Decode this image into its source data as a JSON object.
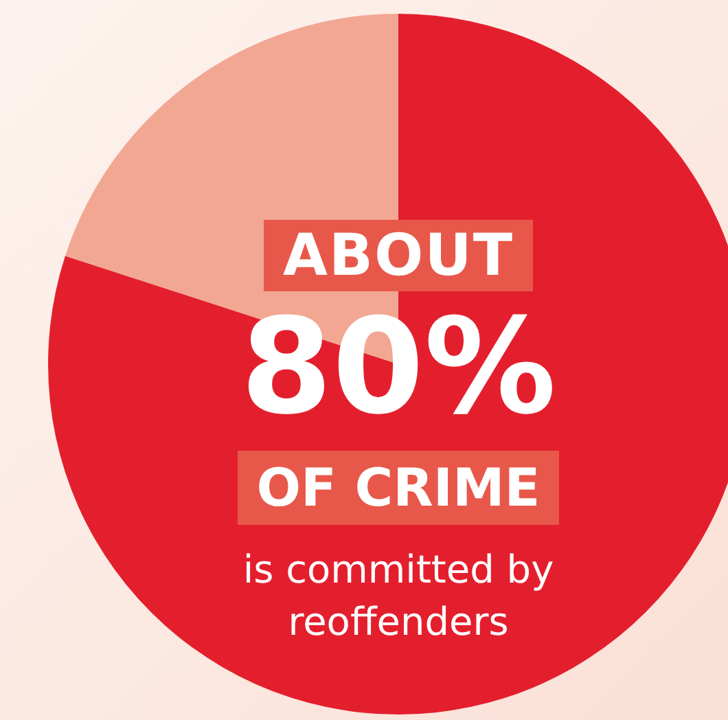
{
  "chart_data": {
    "type": "pie",
    "categories": [
      null,
      null
    ],
    "values": [
      80,
      20
    ],
    "colors": [
      "#e41f2d",
      "#f2a793"
    ],
    "annotations": [
      "ABOUT",
      "80%",
      "OF CRIME",
      "is committed by reoffenders"
    ]
  }
}
